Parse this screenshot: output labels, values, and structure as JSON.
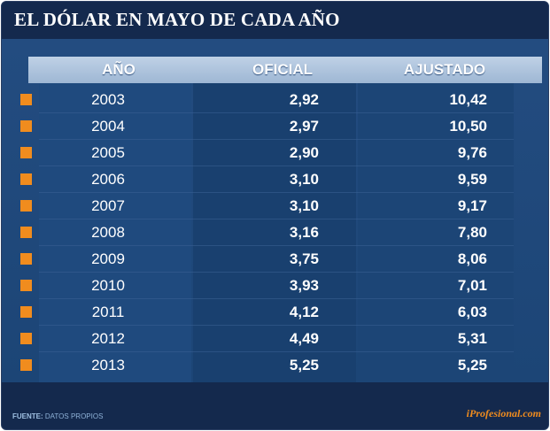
{
  "title": "EL DÓLAR EN MAYO DE CADA AÑO",
  "colors": {
    "accent": "#f08c1e",
    "background": "#173c6e",
    "header": "#14294d"
  },
  "chart_data": {
    "type": "table",
    "title": "EL DÓLAR EN MAYO DE CADA AÑO",
    "columns": [
      "AÑO",
      "OFICIAL",
      "AJUSTADO"
    ],
    "rows": [
      [
        "2003",
        "2,92",
        "10,42"
      ],
      [
        "2004",
        "2,97",
        "10,50"
      ],
      [
        "2005",
        "2,90",
        "9,76"
      ],
      [
        "2006",
        "3,10",
        "9,59"
      ],
      [
        "2007",
        "3,10",
        "9,17"
      ],
      [
        "2008",
        "3,16",
        "7,80"
      ],
      [
        "2009",
        "3,75",
        "8,06"
      ],
      [
        "2010",
        "3,93",
        "7,01"
      ],
      [
        "2011",
        "4,12",
        "6,03"
      ],
      [
        "2012",
        "4,49",
        "5,31"
      ],
      [
        "2013",
        "5,25",
        "5,25"
      ]
    ]
  },
  "footer": {
    "source_label": "FUENTE:",
    "source_text": "DATOS PROPIOS",
    "brand": "iProfesional.com"
  }
}
